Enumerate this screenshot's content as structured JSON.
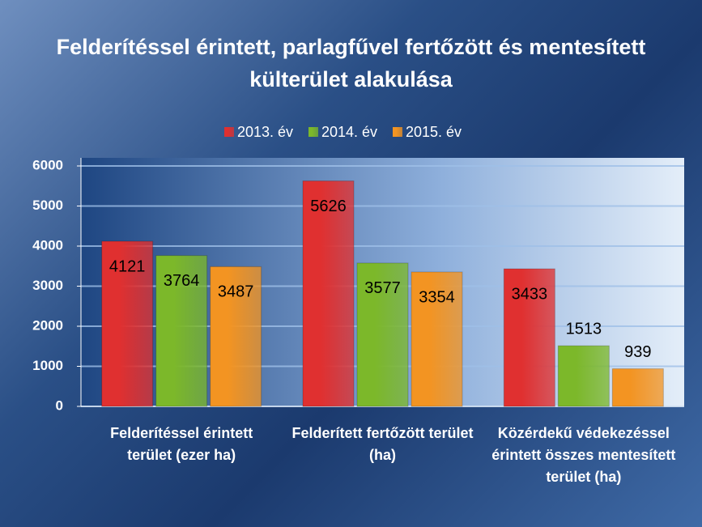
{
  "chart_data": {
    "type": "bar",
    "title": "Felderítéssel érintett, parlagfűvel fertőzött és mentesített külterület alakulása",
    "categories": [
      "Felderítéssel érintett terület (ezer ha)",
      "Felderített fertőzött terület (ha)",
      "Közérdekű védekezéssel érintett összes mentesített terület (ha)"
    ],
    "series": [
      {
        "name": "2013. év",
        "color": "#e03030",
        "values": [
          4121,
          5626,
          3433
        ]
      },
      {
        "name": "2014. év",
        "color": "#7cb82a",
        "values": [
          3764,
          3577,
          1513
        ]
      },
      {
        "name": "2015. év",
        "color": "#f39422",
        "values": [
          3487,
          3354,
          939
        ]
      }
    ],
    "ylim": [
      0,
      6000
    ],
    "yticks": [
      0,
      1000,
      2000,
      3000,
      4000,
      5000,
      6000
    ],
    "grid": true,
    "legend": "top"
  }
}
